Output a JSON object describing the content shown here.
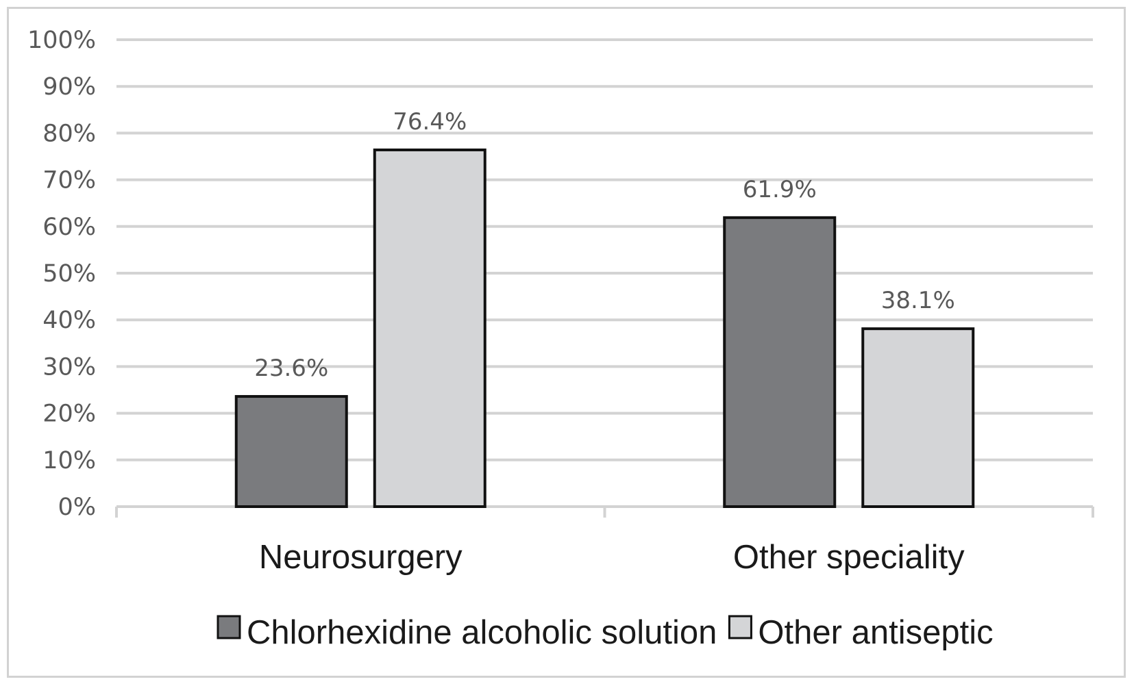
{
  "chart_data": {
    "type": "bar",
    "categories": [
      "Neurosurgery",
      "Other speciality"
    ],
    "series": [
      {
        "name": "Chlorhexidine alcoholic solution",
        "values": [
          23.6,
          61.9
        ],
        "labels": [
          "23.6%",
          "61.9%"
        ],
        "color": "#7a7b7e"
      },
      {
        "name": "Other antiseptic",
        "values": [
          76.4,
          38.1
        ],
        "labels": [
          "76.4%",
          "38.1%"
        ],
        "color": "#d4d5d7"
      }
    ],
    "yticks": [
      "0%",
      "10%",
      "20%",
      "30%",
      "40%",
      "50%",
      "60%",
      "70%",
      "80%",
      "90%",
      "100%"
    ],
    "ylim": [
      0,
      100
    ],
    "grid": true,
    "legend_position": "bottom",
    "title": "",
    "xlabel": "",
    "ylabel": ""
  },
  "colors": {
    "grid": "#d3d3d3",
    "bar_outline": "#111111",
    "frame": "#d2d2d2"
  }
}
